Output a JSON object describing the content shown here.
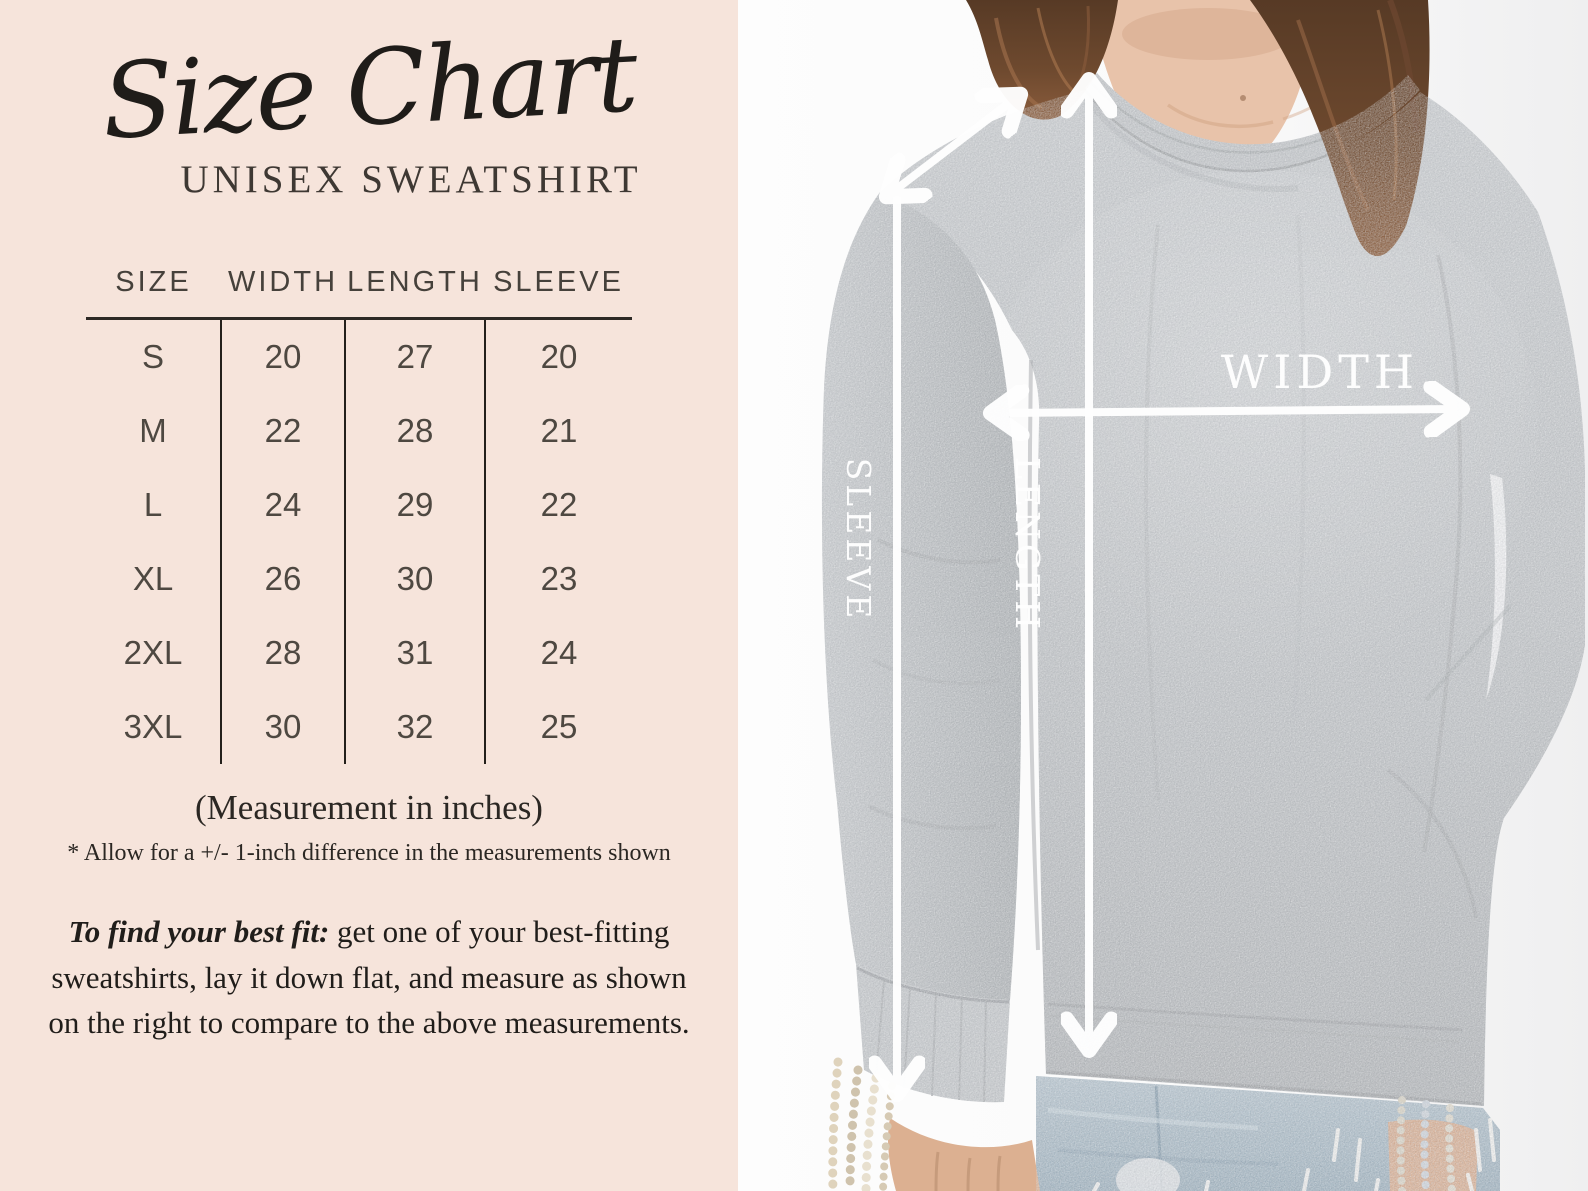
{
  "left_panel": {
    "title": "Size Chart",
    "subtitle": "UNISEX SWEATSHIRT",
    "size_table": {
      "headers": [
        "SIZE",
        "WIDTH",
        "LENGTH",
        "SLEEVE"
      ],
      "rows": [
        [
          "S",
          "20",
          "27",
          "20"
        ],
        [
          "M",
          "22",
          "28",
          "21"
        ],
        [
          "L",
          "24",
          "29",
          "22"
        ],
        [
          "XL",
          "26",
          "30",
          "23"
        ],
        [
          "2XL",
          "28",
          "31",
          "24"
        ],
        [
          "3XL",
          "30",
          "32",
          "25"
        ]
      ]
    },
    "unit_note": "(Measurement in inches)",
    "tolerance_note": "* Allow for a +/- 1-inch difference in the measurements shown",
    "fit_tip": {
      "lead": "To find your best fit:",
      "body": " get one of your best-fitting sweatshirts, lay it down flat, and measure as shown on the right to compare to the above measurements."
    }
  },
  "photo": {
    "measure_labels": {
      "width": "WIDTH",
      "length": "LENGTH",
      "sleeve": "SLEEVE"
    }
  },
  "colors": {
    "panel_background": "#f6e4db",
    "ink": "#2a2622",
    "arrow_white": "#ffffff",
    "sweatshirt_gray": "#bfc2c4",
    "hair_brown": "#6d4930",
    "skin": "#e8c3aa",
    "denim_blue": "#b3c1cb"
  }
}
